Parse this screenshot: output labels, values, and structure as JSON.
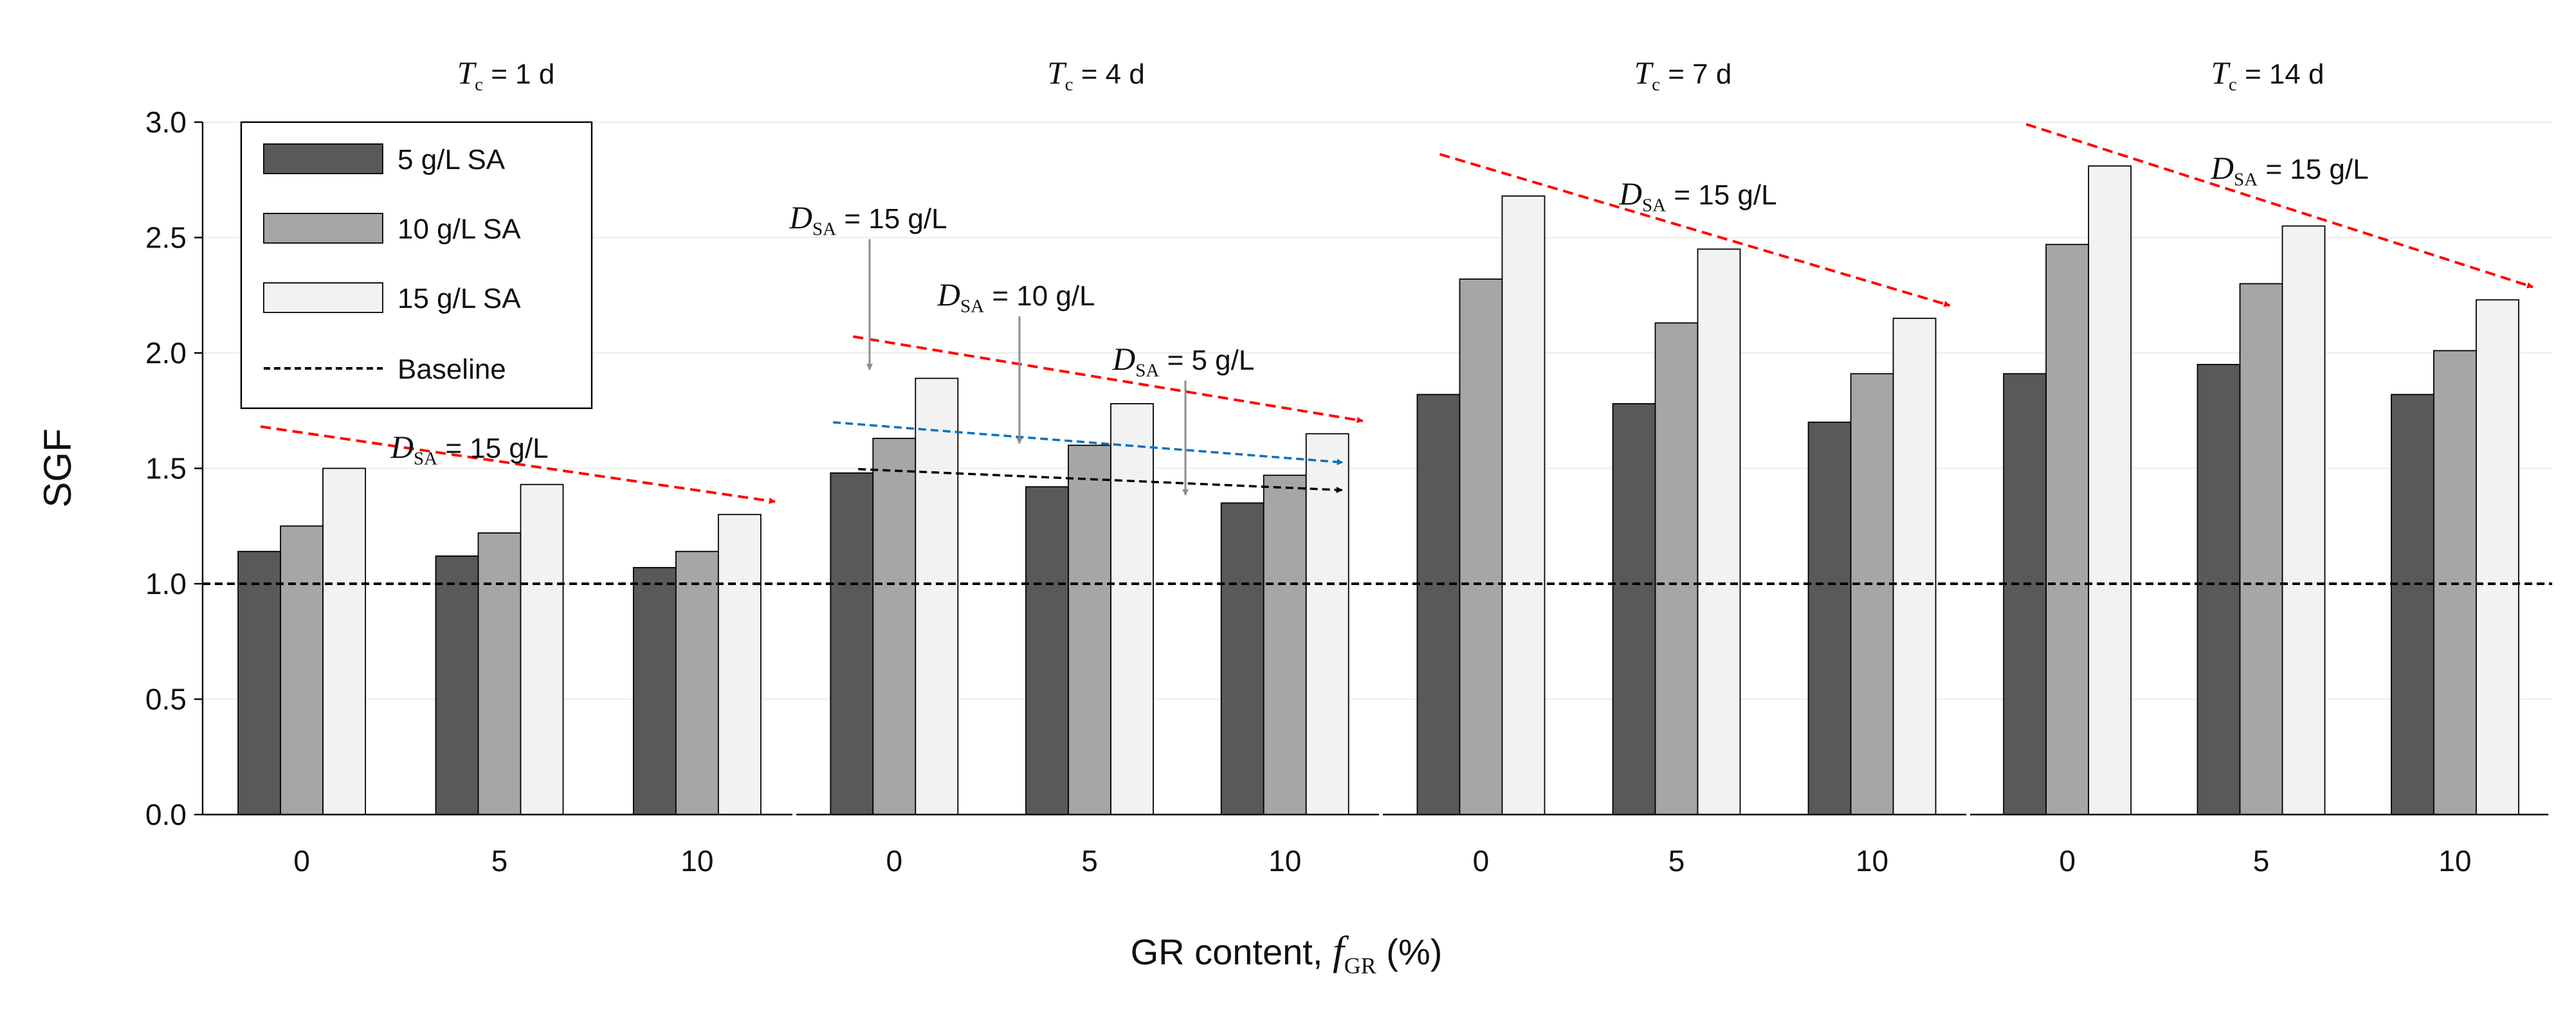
{
  "chart_data": {
    "type": "bar",
    "ylabel": "SGF",
    "xlabel": {
      "prefix": "GR content, ",
      "var": "f",
      "sub": "GR",
      "suffix": " (%)"
    },
    "ylim": [
      0,
      3.0
    ],
    "yticks": [
      "0.0",
      "0.5",
      "1.0",
      "1.5",
      "2.0",
      "2.5",
      "3.0"
    ],
    "categories": [
      "0",
      "5",
      "10"
    ],
    "series_names": [
      "5 g/L SA",
      "10 g/L SA",
      "15 g/L SA"
    ],
    "series_colors": [
      "#595959",
      "#a6a6a6",
      "#f2f2f2"
    ],
    "baseline": {
      "value": 1.0,
      "label": "Baseline"
    },
    "panels": [
      {
        "title": {
          "var": "T",
          "sub": "c",
          "rest": " = 1 d"
        },
        "series": [
          {
            "name": "5 g/L SA",
            "values": [
              1.14,
              1.12,
              1.07
            ]
          },
          {
            "name": "10 g/L SA",
            "values": [
              1.25,
              1.22,
              1.14
            ]
          },
          {
            "name": "15 g/L SA",
            "values": [
              1.5,
              1.43,
              1.3
            ]
          }
        ],
        "annotations": [
          {
            "var": "D",
            "sub": "SA",
            "rest": " = 15 g/L"
          }
        ]
      },
      {
        "title": {
          "var": "T",
          "sub": "c",
          "rest": " = 4 d"
        },
        "series": [
          {
            "name": "5 g/L SA",
            "values": [
              1.48,
              1.42,
              1.35
            ]
          },
          {
            "name": "10 g/L SA",
            "values": [
              1.63,
              1.6,
              1.47
            ]
          },
          {
            "name": "15 g/L SA",
            "values": [
              1.89,
              1.78,
              1.65
            ]
          }
        ],
        "annotations": [
          {
            "var": "D",
            "sub": "SA",
            "rest": " = 15 g/L"
          },
          {
            "var": "D",
            "sub": "SA",
            "rest": " = 10 g/L"
          },
          {
            "var": "D",
            "sub": "SA",
            "rest": " = 5 g/L"
          }
        ]
      },
      {
        "title": {
          "var": "T",
          "sub": "c",
          "rest": " = 7 d"
        },
        "series": [
          {
            "name": "5 g/L SA",
            "values": [
              1.82,
              1.78,
              1.7
            ]
          },
          {
            "name": "10 g/L SA",
            "values": [
              2.32,
              2.13,
              1.91
            ]
          },
          {
            "name": "15 g/L SA",
            "values": [
              2.68,
              2.45,
              2.15
            ]
          }
        ],
        "annotations": [
          {
            "var": "D",
            "sub": "SA",
            "rest": " = 15 g/L"
          }
        ]
      },
      {
        "title": {
          "var": "T",
          "sub": "c",
          "rest": " = 14 d"
        },
        "series": [
          {
            "name": "5 g/L SA",
            "values": [
              1.91,
              1.95,
              1.82
            ]
          },
          {
            "name": "10 g/L SA",
            "values": [
              2.47,
              2.3,
              2.01
            ]
          },
          {
            "name": "15 g/L SA",
            "values": [
              2.81,
              2.55,
              2.23
            ]
          }
        ],
        "annotations": [
          {
            "var": "D",
            "sub": "SA",
            "rest": " = 15 g/L"
          }
        ]
      }
    ]
  }
}
